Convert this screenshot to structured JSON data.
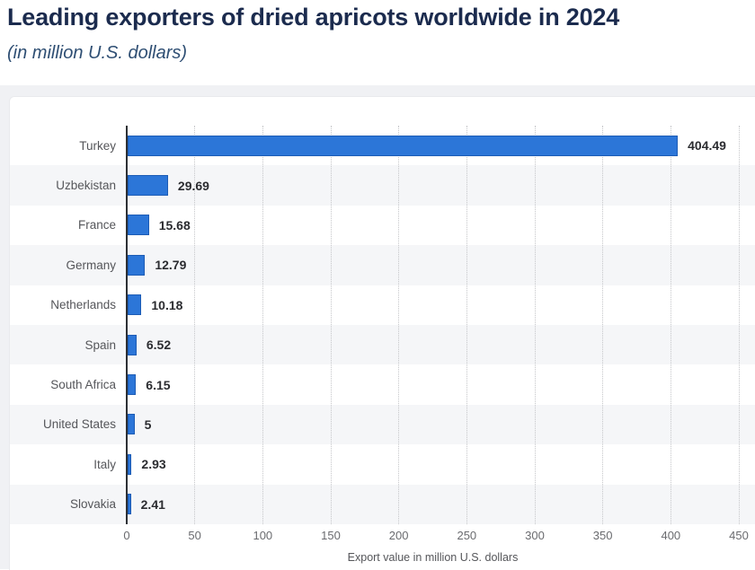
{
  "header": {
    "title": "Leading exporters of dried apricots worldwide in 2024",
    "subtitle": "(in million U.S. dollars)"
  },
  "chart_data": {
    "type": "bar",
    "orientation": "horizontal",
    "title": "Leading exporters of dried apricots worldwide in 2024",
    "subtitle": "(in million U.S. dollars)",
    "categories": [
      "Turkey",
      "Uzbekistan",
      "France",
      "Germany",
      "Netherlands",
      "Spain",
      "South Africa",
      "United States",
      "Italy",
      "Slovakia"
    ],
    "values": [
      404.49,
      29.69,
      15.68,
      12.79,
      10.18,
      6.52,
      6.15,
      5,
      2.93,
      2.41
    ],
    "value_labels": [
      "404.49",
      "29.69",
      "15.68",
      "12.79",
      "10.18",
      "6.52",
      "6.15",
      "5",
      "2.93",
      "2.41"
    ],
    "xlabel": "Export value in million U.S. dollars",
    "ylabel": "",
    "xlim": [
      0,
      450
    ],
    "xticks": [
      0,
      50,
      100,
      150,
      200,
      250,
      300,
      350,
      400,
      450
    ],
    "grid": "vertical-dotted",
    "legend": "none",
    "bar_color": "#2c76d8",
    "bar_border_color": "#1d5cb5",
    "row_band_colors": [
      "#ffffff",
      "#f5f6f8"
    ],
    "axis_line_color": "#2d3035"
  },
  "colors": {
    "title_text": "#1b2b4e",
    "subtitle_text": "#2e4e73",
    "page_background": "#f0f1f4",
    "card_background": "#ffffff",
    "gridline": "#c6c7ca",
    "category_label": "#55565a",
    "value_label": "#2b2c30",
    "tick_label": "#6a6b6f"
  }
}
